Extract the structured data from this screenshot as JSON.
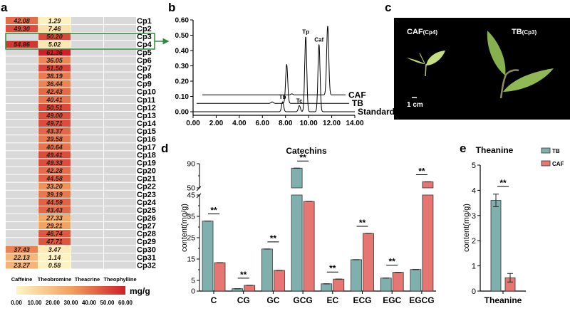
{
  "panel_labels": {
    "a": "a",
    "b": "b",
    "c": "c",
    "d": "d",
    "e": "e"
  },
  "colors": {
    "tb": "#7fb0ad",
    "caf": "#e57672",
    "empty_cell": "#d9d9d9",
    "scale_low": "#fdf5c4",
    "scale_mid": "#f2a15f",
    "scale_high": "#cf1f28",
    "highlight_box": "#2e8b3e"
  },
  "chart_data": [
    {
      "type": "heatmap",
      "columns": [
        "Caffeine",
        "Theobromine",
        "Theacrine",
        "Theophylline"
      ],
      "rows": [
        "Cp1",
        "Cp2",
        "Cp3",
        "Cp4",
        "Cp5",
        "Cp6",
        "Cp7",
        "Cp8",
        "Cp9",
        "Cp10",
        "Cp11",
        "Cp12",
        "Cp13",
        "Cp14",
        "Cp15",
        "Cp16",
        "Cp17",
        "Cp18",
        "Cp19",
        "Cp20",
        "Cp21",
        "Cp22",
        "Cp23",
        "Cp24",
        "Cp25",
        "Cp26",
        "Cp27",
        "Cp28",
        "Cp29",
        "Cp30",
        "Cp31",
        "Cp32"
      ],
      "values": {
        "Caffeine": [
          "42.08",
          "49.30",
          null,
          "54.86",
          null,
          null,
          null,
          null,
          null,
          null,
          null,
          null,
          null,
          null,
          null,
          null,
          null,
          null,
          null,
          null,
          null,
          null,
          null,
          null,
          null,
          null,
          null,
          null,
          null,
          "37.43",
          "22.13",
          "23.27"
        ],
        "Theobromine": [
          "1.29",
          "7.46",
          "50.20",
          "5.02",
          "61.36",
          "36.05",
          "51.50",
          "38.19",
          "36.44",
          "42.43",
          "40.41",
          "50.51",
          "49.00",
          "49.71",
          "43.37",
          "39.58",
          "40.64",
          "49.41",
          "49.33",
          "42.28",
          "44.58",
          "33.20",
          "39.19",
          "44.59",
          "43.43",
          "27.33",
          "29.21",
          "46.74",
          "47.71",
          "3.47",
          "1.14",
          "0.58"
        ],
        "Theacrine": [],
        "Theophylline": []
      },
      "highlighted_rows": [
        "Cp3",
        "Cp4"
      ],
      "colorbar": {
        "unit": "mg/g",
        "ticks": [
          "0.00",
          "10.00",
          "20.00",
          "30.00",
          "40.00",
          "50.00",
          "60.00"
        ],
        "range": [
          0,
          60
        ]
      }
    },
    {
      "type": "line",
      "xlim": [
        0,
        14
      ],
      "ylim": [
        0,
        0.6
      ],
      "xticks": [
        "0.00",
        "2.00",
        "4.00",
        "6.00",
        "8.00",
        "10.00",
        "12.00",
        "14.00"
      ],
      "yticks": [
        "0.00",
        "0.10",
        "0.20",
        "0.30",
        "0.40",
        "0.50",
        "0.60"
      ],
      "series": [
        {
          "name": "CAF",
          "baseline": 0.11,
          "x_range": [
            0.8,
            13.2
          ],
          "peaks": [
            {
              "x": 8.55,
              "y": 0.117
            },
            {
              "x": 11.65,
              "y": 0.56
            }
          ]
        },
        {
          "name": "TB",
          "baseline": 0.055,
          "x_range": [
            0.3,
            13.5
          ],
          "peaks": [
            {
              "x": 6.85,
              "y": 0.064
            },
            {
              "x": 8.1,
              "y": 0.31
            }
          ]
        },
        {
          "name": "Standard",
          "baseline": 0.0,
          "x_range": [
            0,
            14
          ],
          "peaks": [
            {
              "x": 7.75,
              "y": 0.065
            },
            {
              "x": 9.2,
              "y": 0.04
            },
            {
              "x": 9.75,
              "y": 0.49
            },
            {
              "x": 10.9,
              "y": 0.44
            }
          ]
        }
      ],
      "peak_labels": [
        {
          "text": "Tb",
          "x": 7.75,
          "y": 0.065
        },
        {
          "text": "Tc",
          "x": 9.2,
          "y": 0.04
        },
        {
          "text": "Tp",
          "x": 9.75,
          "y": 0.49
        },
        {
          "text": "Caf",
          "x": 10.9,
          "y": 0.44
        }
      ]
    },
    {
      "type": "bar",
      "title": "Catechins",
      "ylabel": "content(mg/g)",
      "axis_break": [
        45,
        50
      ],
      "ylim_lower": [
        0,
        45
      ],
      "ylim_upper": [
        50,
        90
      ],
      "yticks": [
        "0",
        "5",
        "15",
        "25",
        "35",
        "45",
        "50",
        "90"
      ],
      "categories": [
        "C",
        "CG",
        "GC",
        "GCG",
        "EC",
        "ECG",
        "EGC",
        "EGCG"
      ],
      "series": [
        {
          "name": "TB",
          "values": [
            32.8,
            1.1,
            19.7,
            82.6,
            3.4,
            14.7,
            6.1,
            10.1
          ]
        },
        {
          "name": "CAF",
          "values": [
            13.3,
            2.7,
            9.7,
            42.0,
            5.6,
            27.0,
            8.8,
            60.0
          ]
        }
      ],
      "significance": [
        "**",
        "**",
        "**",
        "**",
        "**",
        "**",
        "**",
        "**"
      ]
    },
    {
      "type": "bar",
      "title": "Theanine",
      "ylabel": "content(mg/g)",
      "ylim": [
        0,
        5
      ],
      "yticks": [
        "0",
        "1",
        "2",
        "3",
        "4",
        "5"
      ],
      "categories": [
        "Theanine"
      ],
      "series": [
        {
          "name": "TB",
          "values": [
            3.6
          ],
          "error": [
            0.25
          ]
        },
        {
          "name": "CAF",
          "values": [
            0.53
          ],
          "error": [
            0.17
          ]
        }
      ],
      "significance": [
        "**"
      ],
      "legend": {
        "position": "top-right",
        "entries": [
          "TB",
          "CAF"
        ]
      }
    }
  ],
  "photo": {
    "left_label": "CAF",
    "left_sub": "(Cp4)",
    "right_label": "TB",
    "right_sub": "(Cp3)",
    "scale_bar": "1 cm",
    "background": "#000000"
  }
}
